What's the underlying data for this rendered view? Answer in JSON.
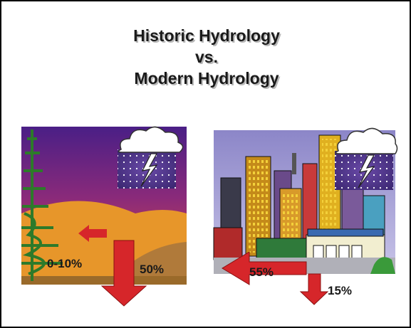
{
  "header": {
    "title": [
      "Historic Hydrology",
      "vs.",
      "Modern Hydrology"
    ]
  },
  "panels": [
    {
      "labels": [
        "0-10%",
        "50%"
      ]
    },
    {
      "labels": [
        "55%",
        "15%"
      ]
    }
  ]
}
